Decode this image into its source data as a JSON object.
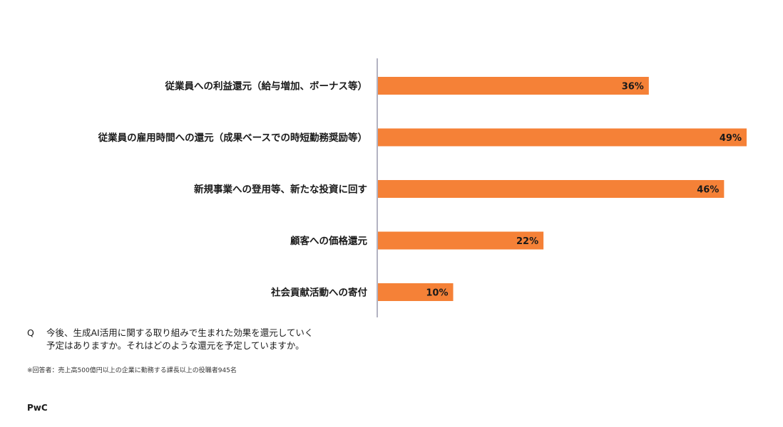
{
  "chart_data": {
    "type": "bar",
    "orientation": "horizontal",
    "categories": [
      "従業員への利益還元（給与増加、ボーナス等）",
      "従業員の雇用時間への還元（成果ベースでの時短勤務奨励等）",
      "新規事業への登用等、新たな投資に回す",
      "顧客への価格還元",
      "社会貢献活動への寄付"
    ],
    "values": [
      36,
      49,
      46,
      22,
      10
    ],
    "value_labels": [
      "36%",
      "49%",
      "46%",
      "22%",
      "10%"
    ],
    "unit": "%",
    "xlim": [
      0,
      49
    ],
    "grid": false,
    "bar_color": "#f58137",
    "axis_color": "#9a9aae"
  },
  "question": {
    "mark": "Q",
    "text": "今後、生成AI活用に関する取り組みで生まれた効果を還元していく\n予定はありますか。それはどのような還元を予定していますか。"
  },
  "note": "※回答者：売上高500億円以上の企業に勤務する課長以上の役職者945名",
  "logo": "PwC"
}
